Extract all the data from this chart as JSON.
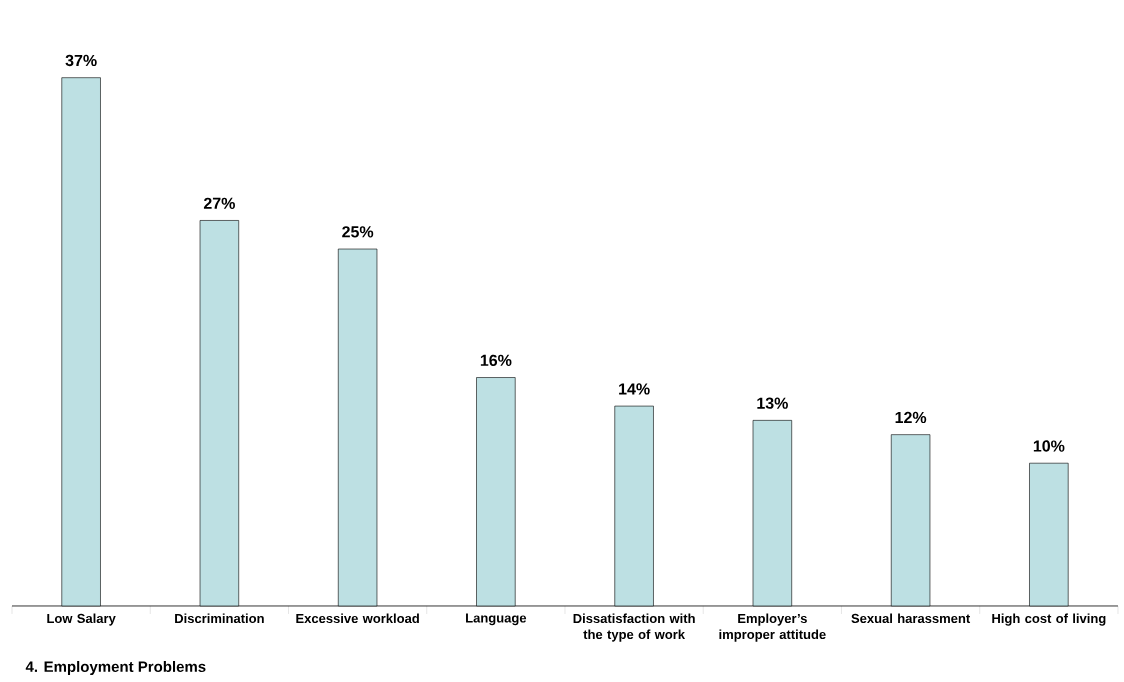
{
  "chart_data": {
    "type": "bar",
    "categories": [
      "Low Salary",
      "Discrimination",
      "Excessive workload",
      "Language",
      "Dissatisfaction with the type of work",
      "Employer’s improper attitude",
      "Sexual harassment",
      "High cost of living"
    ],
    "values": [
      37,
      27,
      25,
      16,
      14,
      13,
      12,
      10
    ],
    "value_labels": [
      "37%",
      "27%",
      "25%",
      "16%",
      "14%",
      "13%",
      "12%",
      "10%"
    ],
    "color": "#bde0e3",
    "annotations": [
      "4. Employment Problems"
    ]
  }
}
